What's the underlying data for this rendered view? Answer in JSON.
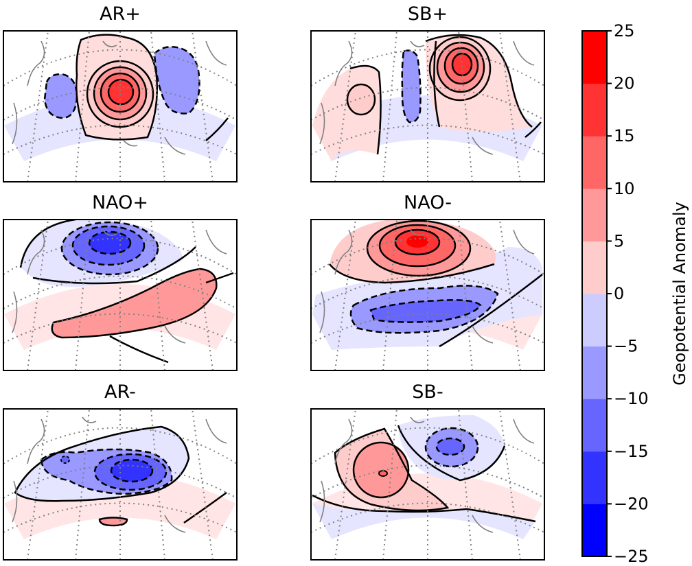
{
  "chart_data": {
    "type": "heatmap",
    "description_kind": "filled-contour map panels",
    "panels": [
      {
        "title": "AR+",
        "anomalies": [
          {
            "center_lonlat": [
              -30,
              56
            ],
            "peak": 22,
            "sign": "positive"
          },
          {
            "center_lonlat": [
              -62,
              58
            ],
            "peak": -9,
            "sign": "negative"
          },
          {
            "center_lonlat": [
              5,
              65
            ],
            "peak": -9,
            "sign": "negative"
          }
        ]
      },
      {
        "title": "SB+",
        "anomalies": [
          {
            "center_lonlat": [
              10,
              65
            ],
            "peak": 18,
            "sign": "positive"
          },
          {
            "center_lonlat": [
              -18,
              60
            ],
            "peak": -9,
            "sign": "negative"
          },
          {
            "center_lonlat": [
              -65,
              48
            ],
            "peak": 7,
            "sign": "positive"
          }
        ]
      },
      {
        "title": "NAO+",
        "anomalies": [
          {
            "center_lonlat": [
              -40,
              68
            ],
            "peak": -18,
            "sign": "negative"
          },
          {
            "center_lonlat": [
              -20,
              45
            ],
            "peak": 9,
            "sign": "positive"
          }
        ]
      },
      {
        "title": "NAO-",
        "anomalies": [
          {
            "center_lonlat": [
              -40,
              68
            ],
            "peak": 22,
            "sign": "positive"
          },
          {
            "center_lonlat": [
              -25,
              45
            ],
            "peak": -13,
            "sign": "negative"
          }
        ]
      },
      {
        "title": "AR-",
        "anomalies": [
          {
            "center_lonlat": [
              -25,
              58
            ],
            "peak": -18,
            "sign": "negative"
          },
          {
            "center_lonlat": [
              -75,
              58
            ],
            "peak": -10,
            "sign": "negative"
          },
          {
            "center_lonlat": [
              -30,
              40
            ],
            "peak": 6,
            "sign": "positive"
          }
        ]
      },
      {
        "title": "SB-",
        "anomalies": [
          {
            "center_lonlat": [
              -55,
              58
            ],
            "peak": 14,
            "sign": "positive"
          },
          {
            "center_lonlat": [
              -5,
              68
            ],
            "peak": -13,
            "sign": "negative"
          }
        ]
      }
    ],
    "colorbar": {
      "label": "Geopotential Anomaly",
      "ticks": [
        25,
        20,
        15,
        10,
        5,
        0,
        -5,
        -10,
        -15,
        -20,
        -25
      ],
      "levels": [
        -25,
        -20,
        -15,
        -10,
        -5,
        0,
        5,
        10,
        15,
        20,
        25
      ],
      "colors": [
        "#0000ff",
        "#3333ff",
        "#6666ff",
        "#9999ff",
        "#ccccff",
        "#ffcccc",
        "#ff9999",
        "#ff6666",
        "#ff3333",
        "#ff0000"
      ],
      "range": [
        -25,
        25
      ],
      "tick_labels": [
        "25",
        "20",
        "15",
        "10",
        "5",
        "0",
        "−5",
        "−10",
        "−15",
        "−20",
        "−25"
      ]
    },
    "contours": {
      "color": "#000000",
      "negative_style": "dashed",
      "positive_style": "solid"
    },
    "projection": "polar stereographic sector, North Atlantic",
    "gridlines": "dotted grey",
    "coastlines": "grey"
  }
}
